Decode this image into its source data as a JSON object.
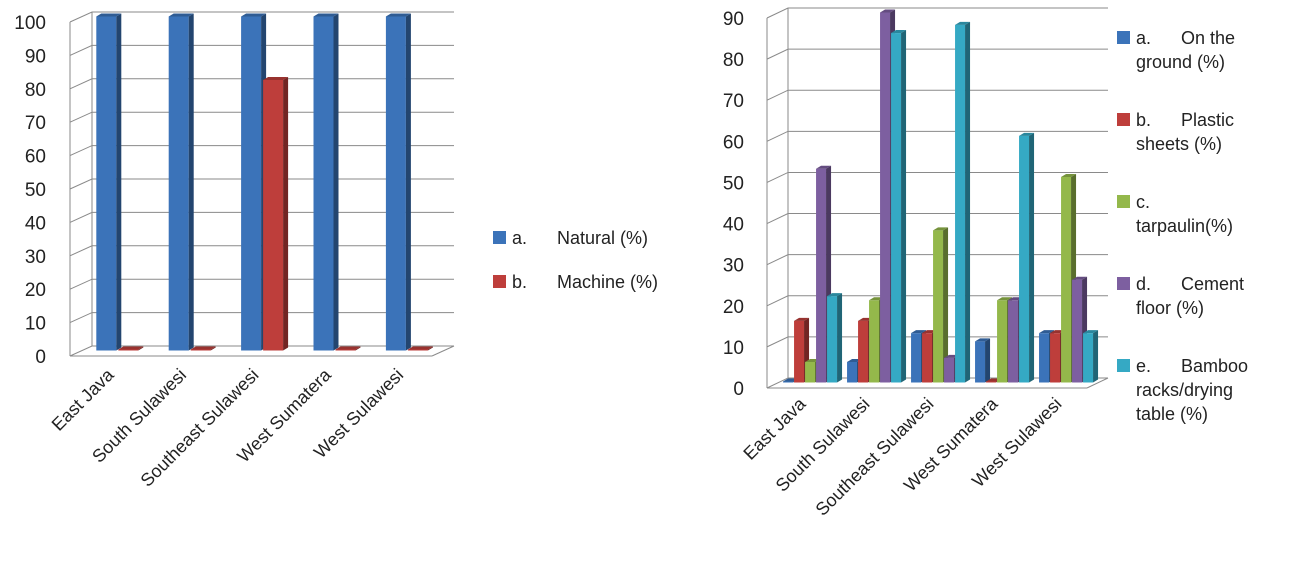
{
  "chart_data": [
    {
      "type": "bar",
      "categories": [
        "East Java",
        "South Sulawesi",
        "Southeast Sulawesi",
        "West Sumatera",
        "West Sulawesi"
      ],
      "series": [
        {
          "name": "a.      Natural (%)",
          "color": "#3B73B9",
          "values": [
            100,
            100,
            100,
            100,
            100
          ]
        },
        {
          "name": "b.      Machine (%)",
          "color": "#BE3E3B",
          "values": [
            0,
            0,
            81,
            0,
            0
          ]
        }
      ],
      "yticks": [
        "0",
        "10",
        "20",
        "30",
        "40",
        "50",
        "60",
        "70",
        "80",
        "90",
        "100"
      ],
      "ylim": [
        0,
        100
      ],
      "grid": true,
      "three_d": true,
      "legend_position": "right"
    },
    {
      "type": "bar",
      "categories": [
        "East Java",
        "South Sulawesi",
        "Southeast Sulawesi",
        "West Sumatera",
        "West Sulawesi"
      ],
      "series": [
        {
          "name": "a.      On the ground (%)",
          "legend_lines": [
            "a.      On the",
            "ground (%)"
          ],
          "color": "#3B73B9",
          "values": [
            0,
            5,
            12,
            10,
            12
          ]
        },
        {
          "name": "b.      Plastic sheets (%)",
          "legend_lines": [
            "b.      Plastic",
            "sheets (%)"
          ],
          "color": "#BE3E3B",
          "values": [
            15,
            15,
            12,
            0,
            12
          ]
        },
        {
          "name": "c.      tarpaulin(%)",
          "legend_lines": [
            "c.",
            "tarpaulin(%)"
          ],
          "color": "#94B84B",
          "values": [
            5,
            20,
            37,
            20,
            50
          ]
        },
        {
          "name": "d.      Cement floor (%)",
          "legend_lines": [
            "d.      Cement",
            "floor (%)"
          ],
          "color": "#7D5FA0",
          "values": [
            52,
            90,
            6,
            20,
            25
          ]
        },
        {
          "name": "e.      Bamboo racks/drying table (%)",
          "legend_lines": [
            "e.      Bamboo",
            "racks/drying",
            "table (%)"
          ],
          "color": "#35A9C4",
          "values": [
            21,
            85,
            87,
            60,
            12
          ]
        }
      ],
      "yticks": [
        "0",
        "10",
        "20",
        "30",
        "40",
        "50",
        "60",
        "70",
        "80",
        "90"
      ],
      "ylim": [
        0,
        90
      ],
      "grid": true,
      "three_d": true,
      "legend_position": "right"
    }
  ]
}
